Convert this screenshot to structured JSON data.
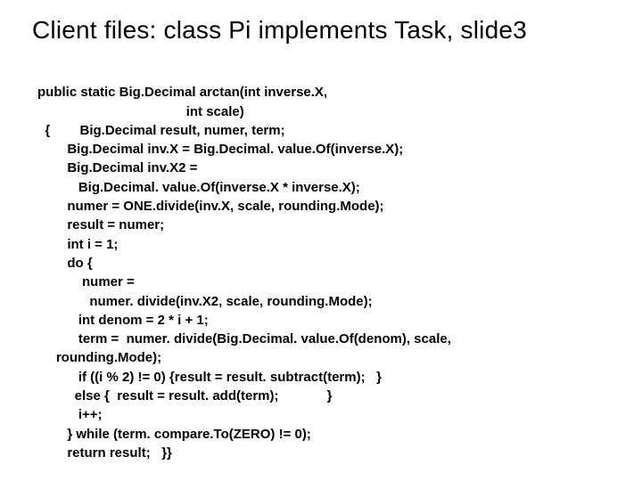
{
  "title": "Client files: class Pi implements Task, slide3",
  "code": {
    "l0": "public static Big.Decimal arctan(int inverse.X,",
    "l1": "                                        int scale)",
    "l2": "  {        Big.Decimal result, numer, term;",
    "l3": "        Big.Decimal inv.X = Big.Decimal. value.Of(inverse.X);",
    "l4": "        Big.Decimal inv.X2 =",
    "l5": "           Big.Decimal. value.Of(inverse.X * inverse.X);",
    "l6": "        numer = ONE.divide(inv.X, scale, rounding.Mode);",
    "l7": "        result = numer;",
    "l8": "        int i = 1;",
    "l9": "        do {",
    "l10": "            numer =",
    "l11": "              numer. divide(inv.X2, scale, rounding.Mode);",
    "l12": "           int denom = 2 * i + 1;",
    "l13": "           term =  numer. divide(Big.Decimal. value.Of(denom), scale,",
    "l14": "     rounding.Mode);",
    "l15": "           if ((i % 2) != 0) {result = result. subtract(term);   }",
    "l16": "          else {  result = result. add(term);             }",
    "l17": "           i++;",
    "l18": "        } while (term. compare.To(ZERO) != 0);",
    "l19": "        return result;   }}"
  },
  "colors": {
    "background": "#ffffff",
    "text": "#000000"
  },
  "typography": {
    "title_fontsize": 28,
    "title_weight": 400,
    "code_fontsize": 15,
    "code_weight": 700,
    "font_family": "Arial, Helvetica, sans-serif"
  }
}
